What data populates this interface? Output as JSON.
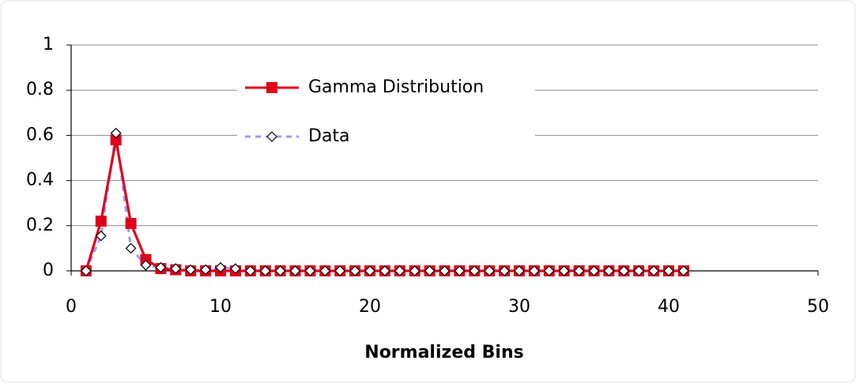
{
  "chart_data": {
    "type": "line",
    "x": [
      1,
      2,
      3,
      4,
      5,
      6,
      7,
      8,
      9,
      10,
      11,
      12,
      13,
      14,
      15,
      16,
      17,
      18,
      19,
      20,
      21,
      22,
      23,
      24,
      25,
      26,
      27,
      28,
      29,
      30,
      31,
      32,
      33,
      34,
      35,
      36,
      37,
      38,
      39,
      40,
      41
    ],
    "series": [
      {
        "name": "Gamma Distribution",
        "color": "#e0001b",
        "marker": "square",
        "dashed": false,
        "values": [
          0,
          0.22,
          0.58,
          0.21,
          0.05,
          0.01,
          0.005,
          0,
          0,
          0,
          0,
          0,
          0,
          0,
          0,
          0,
          0,
          0,
          0,
          0,
          0,
          0,
          0,
          0,
          0,
          0,
          0,
          0,
          0,
          0,
          0,
          0,
          0,
          0,
          0,
          0,
          0,
          0,
          0,
          0,
          0
        ]
      },
      {
        "name": "Data",
        "color": "#9999ff",
        "marker": "diamond",
        "dashed": true,
        "values": [
          0,
          0.155,
          0.61,
          0.1,
          0.025,
          0.015,
          0.01,
          0.005,
          0.005,
          0.015,
          0.01,
          0,
          0,
          0,
          0,
          0,
          0,
          0,
          0,
          0,
          0,
          0,
          0,
          0,
          0,
          0,
          0,
          0,
          0,
          0,
          0,
          0,
          0,
          0,
          0,
          0,
          0,
          0,
          0,
          0,
          0
        ]
      }
    ],
    "x_label": "Normalized Bins",
    "xlim": [
      0,
      50
    ],
    "xticks": [
      0,
      10,
      20,
      30,
      40,
      50
    ],
    "ylim": [
      0,
      1
    ],
    "yticks": [
      0,
      0.2,
      0.4,
      0.6,
      0.8,
      1
    ],
    "grid": true
  }
}
